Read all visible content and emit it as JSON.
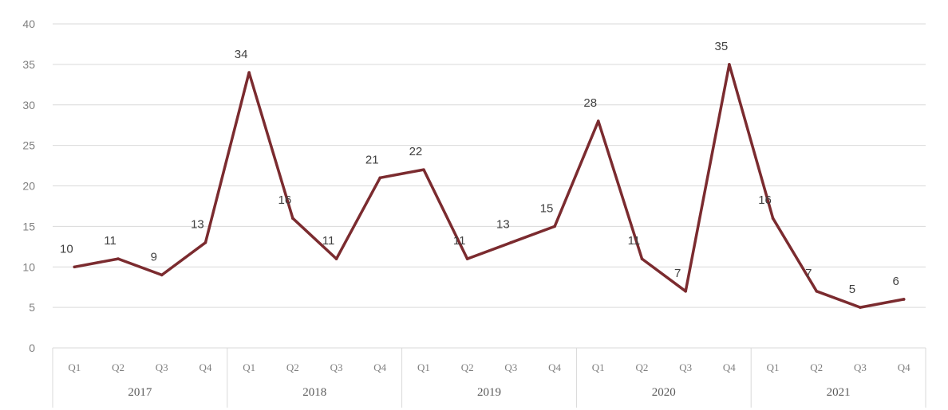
{
  "chart_data": {
    "type": "line",
    "title": "",
    "xlabel": "",
    "ylabel": "",
    "ylim": [
      0,
      40
    ],
    "yticks": [
      0,
      5,
      10,
      15,
      20,
      25,
      30,
      35,
      40
    ],
    "grid": true,
    "legend": "none",
    "groups": [
      {
        "label": "2017",
        "quarters": [
          "Q1",
          "Q2",
          "Q3",
          "Q4"
        ]
      },
      {
        "label": "2018",
        "quarters": [
          "Q1",
          "Q2",
          "Q3",
          "Q4"
        ]
      },
      {
        "label": "2019",
        "quarters": [
          "Q1",
          "Q2",
          "Q3",
          "Q4"
        ]
      },
      {
        "label": "2020",
        "quarters": [
          "Q1",
          "Q2",
          "Q3",
          "Q4"
        ]
      },
      {
        "label": "2021",
        "quarters": [
          "Q1",
          "Q2",
          "Q3",
          "Q4"
        ]
      }
    ],
    "series": [
      {
        "color": "#7b2b2f",
        "values": [
          10,
          11,
          9,
          13,
          34,
          16,
          11,
          21,
          22,
          11,
          13,
          15,
          28,
          11,
          7,
          35,
          16,
          7,
          5,
          6
        ],
        "labels": [
          "10",
          "11",
          "9",
          "13",
          "34",
          "16",
          "11",
          "21",
          "22",
          "11",
          "13",
          "15",
          "28",
          "11",
          "7",
          "35",
          "16",
          "7",
          "5",
          "6"
        ]
      }
    ]
  }
}
